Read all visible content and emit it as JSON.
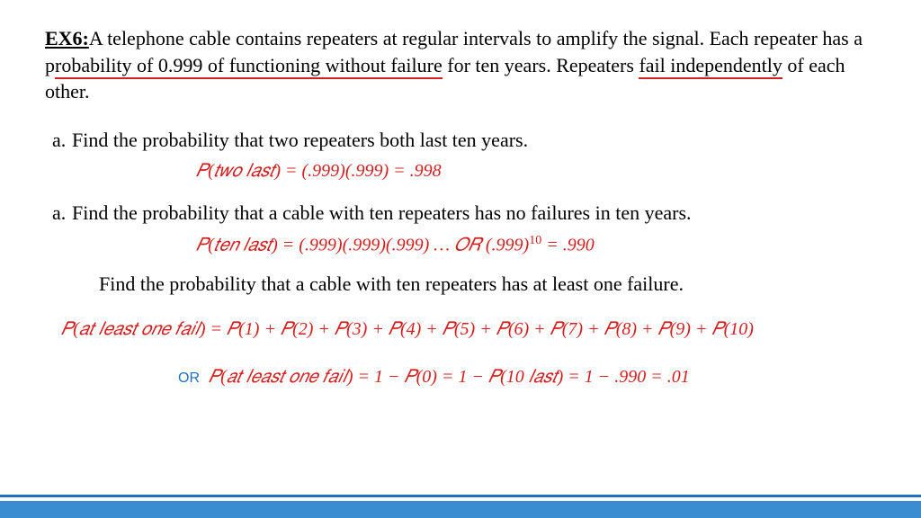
{
  "exLabel": "EX6:",
  "intro1a": "A telephone cable contains repeaters at regular intervals to amplify the signal. Each repeater has a p",
  "intro1b": "robability of 0.999 of functioning without failure",
  "intro1c": " for ten years. Repeaters ",
  "intro1d": "fail independently",
  "intro1e": " of each other.",
  "partA_letter": "a.",
  "partA_text": "Find the probability that two repeaters both last ten years.",
  "mathA": "𝑃(𝑡𝑤𝑜 𝑙𝑎𝑠𝑡) = (.999)(.999) = .998",
  "partB_letter": "a.",
  "partB_text": "Find the probability that a cable with ten repeaters has no failures in ten years.",
  "mathB_a": "𝑃(𝑡𝑒𝑛 𝑙𝑎𝑠𝑡)   = (.999)(.999)(.999) … 𝑂𝑅 (.999)",
  "mathB_sup": "10",
  "mathB_b": " = .990",
  "plainC": "Find the probability that a cable with ten repeaters has at least one failure.",
  "mathC": "𝑃(𝑎𝑡 𝑙𝑒𝑎𝑠𝑡 𝑜𝑛𝑒 𝑓𝑎𝑖𝑙) =  𝑃(1) + 𝑃(2) + 𝑃(3) + 𝑃(4) + 𝑃(5) + 𝑃(6) + 𝑃(7) + 𝑃(8) + 𝑃(9) + 𝑃(10)",
  "orLabel": "OR",
  "mathD": "𝑃(𝑎𝑡 𝑙𝑒𝑎𝑠𝑡 𝑜𝑛𝑒 𝑓𝑎𝑖𝑙) = 1 − 𝑃(0) = 1 − 𝑃(10 𝑙𝑎𝑠𝑡) = 1 − .990 = .01",
  "colors": {
    "math": "#d41f1f",
    "underline": "#d41f1f",
    "orText": "#1f6fbf",
    "footerTop": "#1f6fbf",
    "footerMain": "#3b8dd1"
  }
}
